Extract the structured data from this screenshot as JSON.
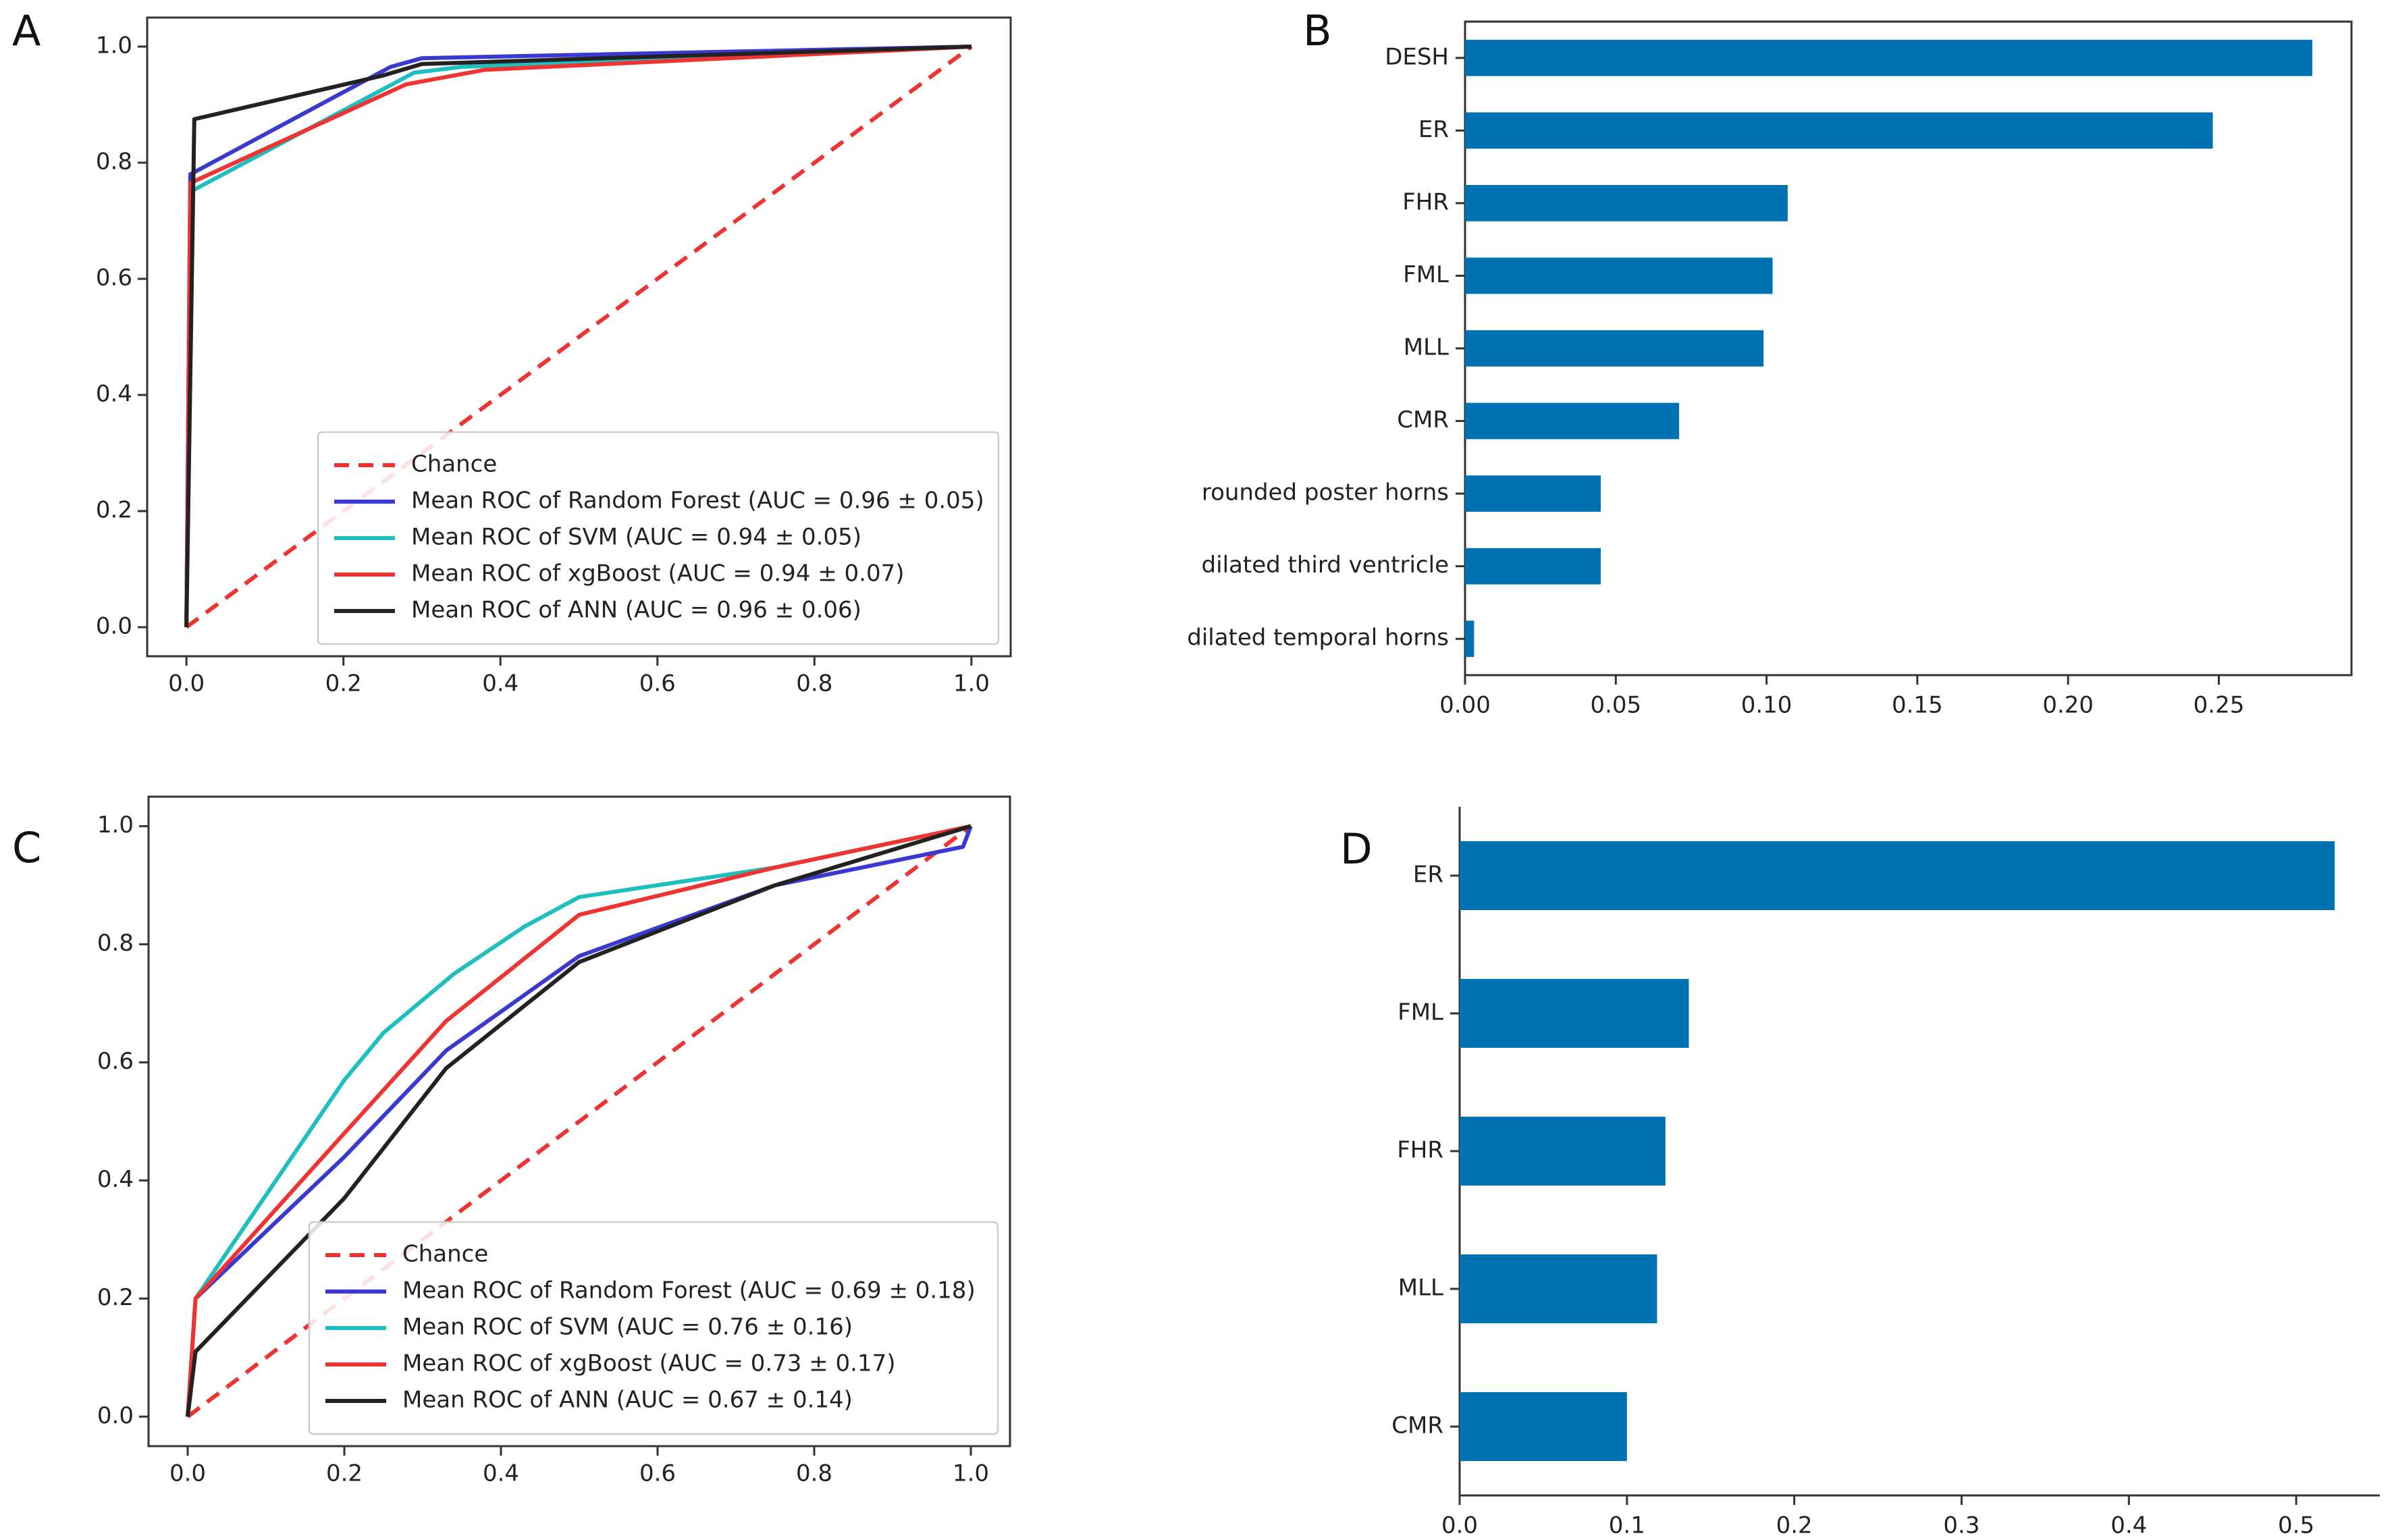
{
  "chart_data": [
    {
      "id": "A",
      "type": "line",
      "panel_label": "A",
      "xlim": [
        -0.05,
        1.05
      ],
      "ylim": [
        -0.05,
        1.05
      ],
      "xticks": [
        0.0,
        0.2,
        0.4,
        0.6,
        0.8,
        1.0
      ],
      "yticks": [
        0.0,
        0.2,
        0.4,
        0.6,
        0.8,
        1.0
      ],
      "xtick_labels": [
        "0.0",
        "0.2",
        "0.4",
        "0.6",
        "0.8",
        "1.0"
      ],
      "ytick_labels": [
        "0.0",
        "0.2",
        "0.4",
        "0.6",
        "0.8",
        "1.0"
      ],
      "legend_position": "lower-right",
      "series": [
        {
          "name": "Chance",
          "label": "Chance",
          "color": "#ee3333",
          "dashed": true,
          "x": [
            0,
            1
          ],
          "y": [
            0,
            1
          ]
        },
        {
          "name": "Random Forest",
          "label": "Mean ROC of Random Forest (AUC = 0.96 ± 0.05)",
          "color": "#3a3ad0",
          "x": [
            0,
            0.005,
            0.26,
            0.3,
            1.0
          ],
          "y": [
            0,
            0.78,
            0.965,
            0.98,
            1.0
          ]
        },
        {
          "name": "SVM",
          "label": "Mean ROC of SVM (AUC = 0.94 ± 0.05)",
          "color": "#1fbfbf",
          "x": [
            0,
            0.005,
            0.29,
            0.35,
            1.0
          ],
          "y": [
            0,
            0.75,
            0.955,
            0.965,
            1.0
          ]
        },
        {
          "name": "xgBoost",
          "label": "Mean ROC of xgBoost (AUC = 0.94 ± 0.07)",
          "color": "#ee3333",
          "x": [
            0,
            0.005,
            0.28,
            0.38,
            1.0
          ],
          "y": [
            0,
            0.765,
            0.935,
            0.96,
            1.0
          ]
        },
        {
          "name": "ANN",
          "label": "Mean ROC of ANN (AUC = 0.96 ± 0.06)",
          "color": "#222222",
          "x": [
            0,
            0.01,
            0.25,
            0.3,
            1.0
          ],
          "y": [
            0,
            0.875,
            0.95,
            0.97,
            1.0
          ]
        }
      ]
    },
    {
      "id": "B",
      "type": "bar",
      "orientation": "horizontal",
      "panel_label": "B",
      "color": "#0072b2",
      "xlim": [
        0,
        0.294
      ],
      "xticks": [
        0.0,
        0.05,
        0.1,
        0.15,
        0.2,
        0.25
      ],
      "xtick_labels": [
        "0.00",
        "0.05",
        "0.10",
        "0.15",
        "0.20",
        "0.25"
      ],
      "categories": [
        "DESH",
        "ER",
        "FHR",
        "FML",
        "MLL",
        "CMR",
        "rounded poster horns",
        "dilated third ventricle",
        "dilated temporal horns"
      ],
      "values": [
        0.281,
        0.248,
        0.107,
        0.102,
        0.099,
        0.071,
        0.045,
        0.045,
        0.003
      ]
    },
    {
      "id": "C",
      "type": "line",
      "panel_label": "C",
      "xlim": [
        -0.05,
        1.05
      ],
      "ylim": [
        -0.05,
        1.05
      ],
      "xticks": [
        0.0,
        0.2,
        0.4,
        0.6,
        0.8,
        1.0
      ],
      "yticks": [
        0.0,
        0.2,
        0.4,
        0.6,
        0.8,
        1.0
      ],
      "xtick_labels": [
        "0.0",
        "0.2",
        "0.4",
        "0.6",
        "0.8",
        "1.0"
      ],
      "ytick_labels": [
        "0.0",
        "0.2",
        "0.4",
        "0.6",
        "0.8",
        "1.0"
      ],
      "legend_position": "lower-right",
      "series": [
        {
          "name": "Chance",
          "label": "Chance",
          "color": "#ee3333",
          "dashed": true,
          "x": [
            0,
            1
          ],
          "y": [
            0,
            1
          ]
        },
        {
          "name": "Random Forest",
          "label": "Mean ROC of Random Forest (AUC = 0.69 ± 0.18)",
          "color": "#3a3ad0",
          "x": [
            0,
            0.01,
            0.2,
            0.33,
            0.5,
            0.75,
            0.99,
            1.0
          ],
          "y": [
            0,
            0.2,
            0.44,
            0.62,
            0.78,
            0.9,
            0.965,
            1.0
          ]
        },
        {
          "name": "SVM",
          "label": "Mean ROC of SVM (AUC = 0.76 ± 0.16)",
          "color": "#1fbfbf",
          "x": [
            0,
            0.01,
            0.2,
            0.25,
            0.34,
            0.43,
            0.5,
            0.75,
            1.0
          ],
          "y": [
            0,
            0.2,
            0.57,
            0.65,
            0.75,
            0.83,
            0.88,
            0.93,
            1.0
          ]
        },
        {
          "name": "xgBoost",
          "label": "Mean ROC of xgBoost (AUC = 0.73 ± 0.17)",
          "color": "#ee3333",
          "x": [
            0,
            0.01,
            0.2,
            0.33,
            0.5,
            0.75,
            1.0
          ],
          "y": [
            0,
            0.2,
            0.48,
            0.67,
            0.85,
            0.93,
            1.0
          ]
        },
        {
          "name": "ANN",
          "label": "Mean ROC of ANN (AUC = 0.67 ± 0.14)",
          "color": "#222222",
          "x": [
            0,
            0.01,
            0.2,
            0.33,
            0.5,
            0.75,
            1.0
          ],
          "y": [
            0,
            0.11,
            0.37,
            0.59,
            0.77,
            0.9,
            1.0
          ]
        }
      ]
    },
    {
      "id": "D",
      "type": "bar",
      "orientation": "horizontal",
      "panel_label": "D",
      "color": "#0072b2",
      "xlim": [
        0,
        0.55
      ],
      "xticks": [
        0.0,
        0.1,
        0.2,
        0.3,
        0.4,
        0.5
      ],
      "xtick_labels": [
        "0.0",
        "0.1",
        "0.2",
        "0.3",
        "0.4",
        "0.5"
      ],
      "categories": [
        "ER",
        "FML",
        "FHR",
        "MLL",
        "CMR"
      ],
      "values": [
        0.523,
        0.137,
        0.123,
        0.118,
        0.1
      ]
    }
  ]
}
